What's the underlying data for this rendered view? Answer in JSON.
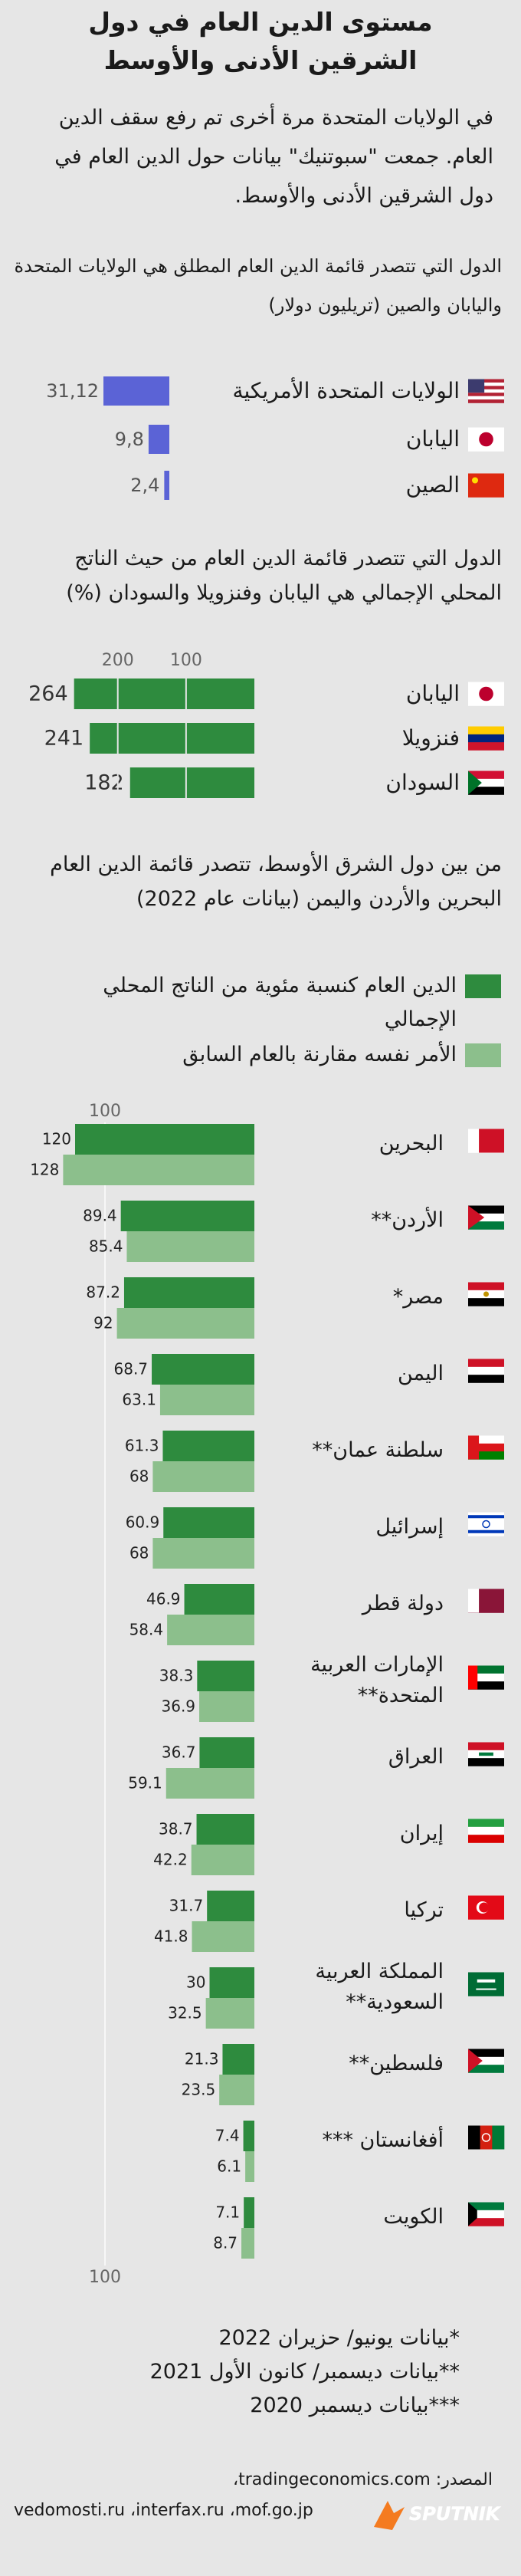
{
  "title": "مستوى الدين العام في دول الشرقين الأدنى والأوسط",
  "intro": "في الولايات المتحدة مرة أخرى تم رفع سقف الدين العام. جمعت \"سبوتنيك\" بيانات حول الدين العام في دول الشرقين الأدنى والأوسط.",
  "chart_data": [
    {
      "type": "bar",
      "subtitle": "الدول التي تتصدر قائمة الدين العام المطلق هي الولايات المتحدة واليابان والصين (تريليون دولار)",
      "categories": [
        "الولايات المتحدة الأمريكية",
        "اليابان",
        "الصين"
      ],
      "values": [
        31.12,
        9.8,
        2.4
      ],
      "value_labels": [
        "31,12",
        "9,8",
        "2,4"
      ],
      "color": "#5b63d6"
    },
    {
      "type": "bar",
      "subtitle": "الدول التي تتصدر قائمة الدين العام من حيث الناتج المحلي الإجمالي هي اليابان وفنزويلا والسودان (%)",
      "categories": [
        "اليابان",
        "فنزويلا",
        "السودان"
      ],
      "values": [
        264,
        241,
        182
      ],
      "color": "#2e8b3e",
      "xlim": [
        350,
        0
      ],
      "xticks": [
        200,
        100
      ],
      "grid": true
    },
    {
      "type": "bar",
      "subtitle": "من بين دول الشرق الأوسط، تتصدر قائمة الدين العام البحرين والأردن واليمن (بيانات عام 2022)",
      "categories": [
        "البحرين",
        "الأردن**",
        "مصر*",
        "اليمن",
        "سلطنة عمان**",
        "إسرائيل",
        "دولة قطر",
        "الإمارات العربية المتحدة**",
        "العراق",
        "إيران",
        "تركيا",
        "المملكة العربية السعودية**",
        "فلسطين**",
        "أفغانستان ***",
        "الكويت"
      ],
      "series": [
        {
          "name": "الدين العام كنسبة مئوية من الناتج المحلي الإجمالي",
          "color": "#2e8b3e",
          "values": [
            120,
            89.4,
            87.2,
            68.7,
            61.3,
            60.9,
            46.9,
            38.3,
            36.7,
            38.7,
            31.7,
            30,
            21.3,
            7.4,
            7.1
          ]
        },
        {
          "name": "الأمر نفسه مقارنة بالعام السابق",
          "color": "#8cbf8c",
          "values": [
            128,
            85.4,
            92,
            63.1,
            68,
            68,
            58.4,
            36.9,
            59.1,
            42.2,
            41.8,
            32.5,
            23.5,
            6.1,
            8.7
          ]
        }
      ],
      "xlim": [
        160,
        0
      ],
      "xticks": [
        100
      ],
      "grid": true
    }
  ],
  "footnotes": [
    "*بيانات يونيو/ حزيران 2022",
    "**بيانات ديسمبر/ كانون الأول 2021",
    "***بيانات ديسمبر 2020"
  ],
  "source": [
    "المصدر: tradingeconomics.com،",
    "vedomosti.ru ،interfax.ru ،mof.go.jp"
  ],
  "brand": "SPUTNIK"
}
